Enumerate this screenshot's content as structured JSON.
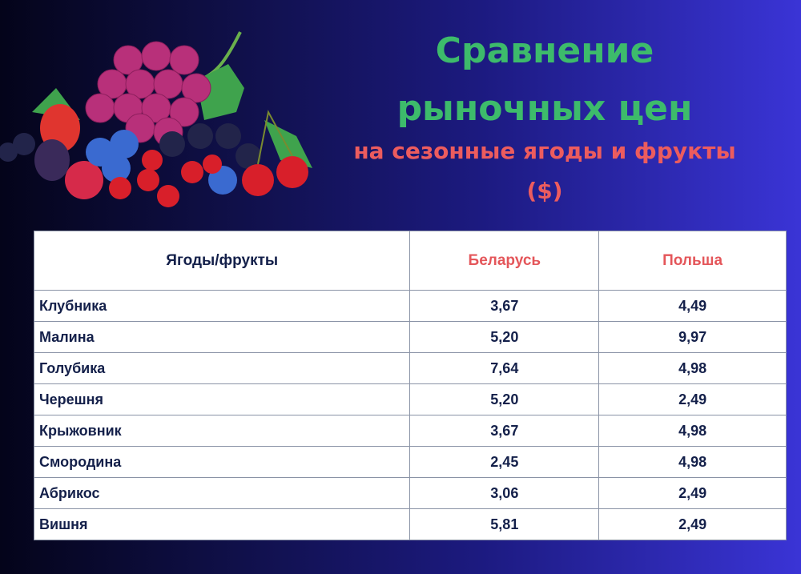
{
  "title": {
    "line1": "Сравнение",
    "line2": "рыночных цен",
    "line3": "на сезонные ягоды и фрукты",
    "line4": "($)"
  },
  "colors": {
    "title": "#3dbb6b",
    "subtitle": "#ec5c5e",
    "text": "#14204a"
  },
  "table": {
    "headers": [
      "Ягоды/фрукты",
      "Беларусь",
      "Польша"
    ],
    "rows": [
      [
        "Клубника",
        "3,67",
        "4,49"
      ],
      [
        "Малина",
        "5,20",
        "9,97"
      ],
      [
        "Голубика",
        "7,64",
        "4,98"
      ],
      [
        "Черешня",
        "5,20",
        "2,49"
      ],
      [
        "Крыжовник",
        "3,67",
        "4,98"
      ],
      [
        "Смородина",
        "2,45",
        "4,98"
      ],
      [
        "Абрикос",
        "3,06",
        "2,49"
      ],
      [
        "Вишня",
        "5,81",
        "2,49"
      ]
    ]
  }
}
